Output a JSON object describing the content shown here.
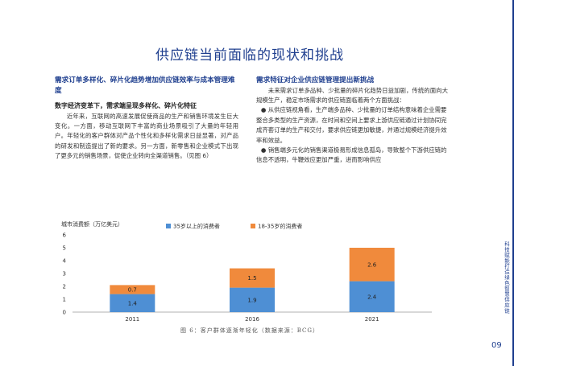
{
  "page_title": "供应链当前面临的现状和挑战",
  "left": {
    "section_heading": "需求订单多样化、碎片化趋势增加供应链效率与成本管理难度",
    "subheading": "数字经济变革下，需求端呈现多样化、碎片化特征",
    "paragraph": "近年来，互联网的高速发展促使商品的生产和销售环境发生巨大变化。一方面，移动互联网下丰富的商业场景吸引了大量的年轻用户。年轻化的客户群体对产品个性化和多样化需求日益显著，对产品的研发和制造提出了新的要求。另一方面，新零售和企业模式下出现了更多元的销售场景，促使企业转向全渠道销售。（见图 6）"
  },
  "right": {
    "section_heading": "需求特征对企业供应链管理提出新挑战",
    "intro": "未来需求订单多品种、少批量的碎片化趋势日益加剧，传统的面向大规模生产，稳定市场需求的供应链面临着两个方面挑战：",
    "bullet1": "从供应链视角看，生产端多品种、少批量的订单结构意味着企业需要整合多类型的生产资源，在时间和空间上要求上游供应链通过计划协同完成齐套订单的生产和交付，要求供应链更加敏捷，并通过规模经济提升效率和效益。",
    "bullet2": "销售端多元化的销售渠道极易形成信息孤岛，导致整个下游供应链的信息不透明，牛鞭效应更加严重，进而影响供应"
  },
  "sidebar_text": "科技赋能打造绿色智慧供应链",
  "page_number": "09",
  "chart_data": {
    "type": "bar",
    "stacked": true,
    "categories": [
      "2011",
      "2016",
      "2021"
    ],
    "series": [
      {
        "name": "35岁以上的消费者",
        "values": [
          1.4,
          1.9,
          2.4
        ],
        "color": "#4e8fd4"
      },
      {
        "name": "18-35岁的消费者",
        "values": [
          0.7,
          1.5,
          2.6
        ],
        "color": "#f08a3c"
      }
    ],
    "ylabel": "城市消费额（万亿美元）",
    "ylim": [
      0,
      6
    ],
    "yticks": [
      0,
      1,
      2,
      3,
      4,
      5,
      6
    ],
    "legend_position": "top",
    "grid": false,
    "caption": "图 6：客户群体逐渐年轻化（数据来源：BCG）"
  }
}
